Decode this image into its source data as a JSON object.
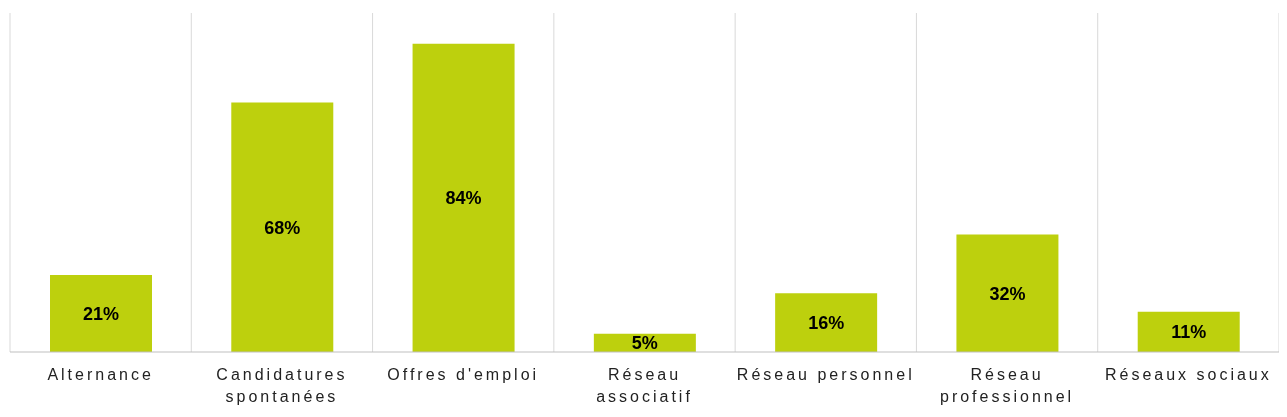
{
  "chart_data": {
    "type": "bar",
    "categories": [
      "Alternance",
      "Candidatures spontanées",
      "Offres d'emploi",
      "Réseau associatif",
      "Réseau personnel",
      "Réseau professionnel",
      "Réseaux sociaux"
    ],
    "values": [
      21,
      68,
      84,
      5,
      16,
      32,
      11
    ],
    "value_labels": [
      "21%",
      "68%",
      "84%",
      "5%",
      "16%",
      "32%",
      "11%"
    ],
    "color": "#bdd00d",
    "grid": "x"
  }
}
